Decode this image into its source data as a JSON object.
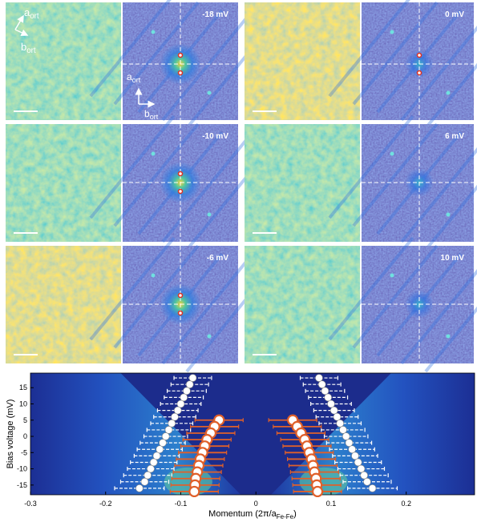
{
  "panels": [
    {
      "label": "-18 mV"
    },
    {
      "label": "0 mV"
    },
    {
      "label": "-10 mV"
    },
    {
      "label": "6 mV"
    },
    {
      "label": "-6 mV"
    },
    {
      "label": "10 mV"
    }
  ],
  "axes_annotation": {
    "a": {
      "main": "a",
      "sub": "ort"
    },
    "b": {
      "main": "b",
      "sub": "ort"
    }
  },
  "chart_data": {
    "type": "scatter",
    "xlabel": {
      "pre": "Momentum (2π/a",
      "sub": "Fe-Fe",
      "post": ")"
    },
    "ylabel": "Bias voltage (mV)",
    "xlim": [
      -0.3,
      0.291
    ],
    "ylim": [
      -18,
      19.5
    ],
    "xticks": [
      -0.3,
      -0.2,
      -0.1,
      0,
      0.1,
      0.2
    ],
    "yticks": [
      -15,
      -10,
      -5,
      0,
      5,
      10,
      15
    ],
    "series": [
      {
        "color": "#ffffff",
        "marker": "dot",
        "y": [
          18,
          16,
          14,
          12,
          10,
          8,
          6,
          4,
          2,
          0,
          -2,
          -4,
          -6,
          -8,
          -10,
          -12,
          -14,
          -16
        ],
        "x": [
          -0.084,
          -0.088,
          -0.092,
          -0.096,
          -0.1,
          -0.104,
          -0.108,
          -0.112,
          -0.116,
          -0.12,
          -0.124,
          -0.128,
          -0.132,
          -0.136,
          -0.14,
          -0.144,
          -0.148,
          -0.155
        ],
        "xerr": [
          0.025,
          0.025,
          0.026,
          0.026,
          0.027,
          0.027,
          0.028,
          0.028,
          0.029,
          0.029,
          0.03,
          0.03,
          0.03,
          0.031,
          0.031,
          0.032,
          0.032,
          0.033
        ]
      },
      {
        "color": "#ffffff",
        "marker": "dot",
        "y": [
          18,
          16,
          14,
          12,
          10,
          8,
          6,
          4,
          2,
          0,
          -2,
          -4,
          -6,
          -8,
          -10,
          -12,
          -14,
          -16
        ],
        "x": [
          0.084,
          0.088,
          0.092,
          0.096,
          0.1,
          0.104,
          0.108,
          0.112,
          0.116,
          0.12,
          0.124,
          0.128,
          0.132,
          0.136,
          0.14,
          0.144,
          0.148,
          0.155
        ],
        "xerr": [
          0.025,
          0.025,
          0.026,
          0.026,
          0.027,
          0.027,
          0.028,
          0.028,
          0.029,
          0.029,
          0.03,
          0.03,
          0.03,
          0.031,
          0.031,
          0.032,
          0.032,
          0.033
        ]
      },
      {
        "color": "#e0602a",
        "marker": "ring",
        "y": [
          5,
          3,
          1,
          -1,
          -3,
          -5,
          -7,
          -9,
          -11,
          -13,
          -15,
          -17
        ],
        "x": [
          -0.049,
          -0.055,
          -0.06,
          -0.065,
          -0.068,
          -0.071,
          -0.074,
          -0.076,
          -0.078,
          -0.08,
          -0.081,
          -0.082
        ],
        "xerr": [
          0.032,
          0.032,
          0.032,
          0.032,
          0.032,
          0.032,
          0.032,
          0.032,
          0.032,
          0.032,
          0.032,
          0.032
        ]
      },
      {
        "color": "#e0602a",
        "marker": "ring",
        "y": [
          5,
          3,
          1,
          -1,
          -3,
          -5,
          -7,
          -9,
          -11,
          -13,
          -15,
          -17
        ],
        "x": [
          0.049,
          0.055,
          0.06,
          0.065,
          0.068,
          0.071,
          0.074,
          0.076,
          0.078,
          0.08,
          0.081,
          0.082
        ],
        "xerr": [
          0.032,
          0.032,
          0.032,
          0.032,
          0.032,
          0.032,
          0.032,
          0.032,
          0.032,
          0.032,
          0.032,
          0.032
        ]
      }
    ]
  }
}
